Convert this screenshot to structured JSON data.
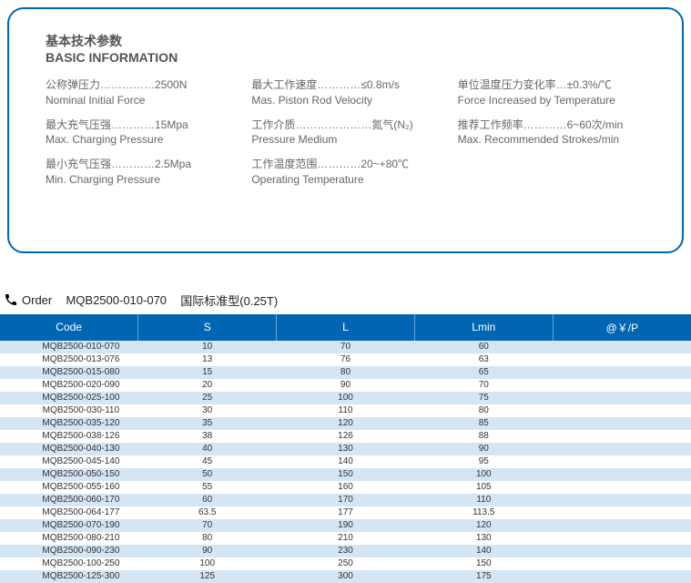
{
  "info": {
    "title_cn": "基本技术参数",
    "title_en": "BASIC INFORMATION",
    "cols": [
      [
        {
          "cn": "公称弹压力……………2500N",
          "en": "Nominal Initial Force"
        },
        {
          "cn": "最大充气压强…………15Mpa",
          "en": "Max. Charging Pressure"
        },
        {
          "cn": "最小充气压强…………2.5Mpa",
          "en": "Min. Charging Pressure"
        }
      ],
      [
        {
          "cn": "最大工作速度…………≤0.8m/s",
          "en": "Mas. Piston Rod Velocity"
        },
        {
          "cn": "工作介质…………………氮气(N₂)",
          "en": "Pressure Medium"
        },
        {
          "cn": "工作温度范围…………20~+80℃",
          "en": "Operating Temperature"
        }
      ],
      [
        {
          "cn": "单位温度压力变化率…±0.3%/℃",
          "en": "Force Increased by Temperature"
        },
        {
          "cn": "推荐工作频率…………6~60次/min",
          "en": "Max. Recommended Strokes/min"
        }
      ]
    ]
  },
  "order": {
    "label": "Order",
    "code": "MQB2500-010-070",
    "desc": "国际标准型(0.25T)"
  },
  "table": {
    "headers": [
      "Code",
      "S",
      "L",
      "Lmin",
      "@￥/P"
    ],
    "col_widths": [
      "20%",
      "20%",
      "20%",
      "20%",
      "20%"
    ],
    "header_bg": "#0066b3",
    "header_fg": "#ffffff",
    "row_odd_bg": "#d4e5f4",
    "row_even_bg": "#ffffff",
    "rows": [
      [
        "MQB2500-010-070",
        "10",
        "70",
        "60",
        ""
      ],
      [
        "MQB2500-013-076",
        "13",
        "76",
        "63",
        ""
      ],
      [
        "MQB2500-015-080",
        "15",
        "80",
        "65",
        ""
      ],
      [
        "MQB2500-020-090",
        "20",
        "90",
        "70",
        ""
      ],
      [
        "MQB2500-025-100",
        "25",
        "100",
        "75",
        ""
      ],
      [
        "MQB2500-030-110",
        "30",
        "110",
        "80",
        ""
      ],
      [
        "MQB2500-035-120",
        "35",
        "120",
        "85",
        ""
      ],
      [
        "MQB2500-038-126",
        "38",
        "126",
        "88",
        ""
      ],
      [
        "MQB2500-040-130",
        "40",
        "130",
        "90",
        ""
      ],
      [
        "MQB2500-045-140",
        "45",
        "140",
        "95",
        ""
      ],
      [
        "MQB2500-050-150",
        "50",
        "150",
        "100",
        ""
      ],
      [
        "MQB2500-055-160",
        "55",
        "160",
        "105",
        ""
      ],
      [
        "MQB2500-060-170",
        "60",
        "170",
        "110",
        ""
      ],
      [
        "MQB2500-064-177",
        "63.5",
        "177",
        "113.5",
        ""
      ],
      [
        "MQB2500-070-190",
        "70",
        "190",
        "120",
        ""
      ],
      [
        "MQB2500-080-210",
        "80",
        "210",
        "130",
        ""
      ],
      [
        "MQB2500-090-230",
        "90",
        "230",
        "140",
        ""
      ],
      [
        "MQB2500-100-250",
        "100",
        "250",
        "150",
        ""
      ],
      [
        "MQB2500-125-300",
        "125",
        "300",
        "175",
        ""
      ]
    ]
  }
}
